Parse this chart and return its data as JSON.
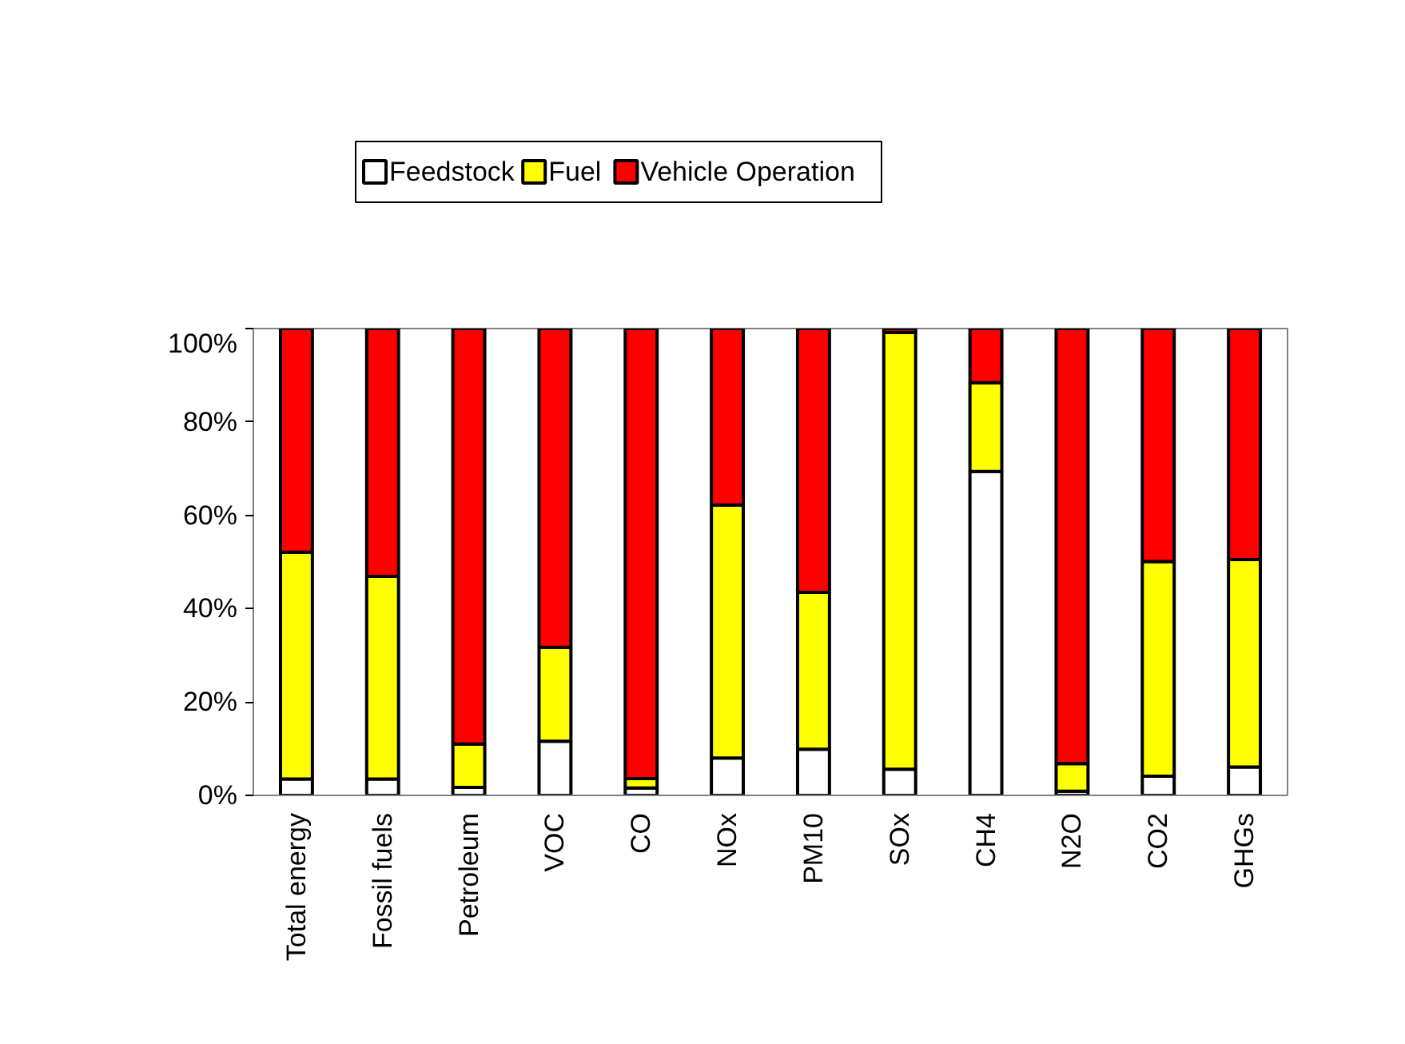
{
  "chart_data": {
    "type": "bar",
    "stacked": true,
    "categories": [
      "Total energy",
      "Fossil fuels",
      "Petroleum",
      "VOC",
      "CO",
      "NOx",
      "PM10",
      "SOx",
      "CH4",
      "N2O",
      "CO2",
      "GHGs"
    ],
    "series": [
      {
        "name": "Feedstock",
        "color": "#ffffff",
        "values": [
          3.5,
          3.5,
          1.7,
          11.6,
          1.6,
          8.0,
          9.9,
          5.6,
          69.4,
          0.9,
          4.1,
          6.1
        ]
      },
      {
        "name": "Fuel",
        "color": "#ffff00",
        "values": [
          48.6,
          43.4,
          9.3,
          20.1,
          2.0,
          54.2,
          33.6,
          93.6,
          19.0,
          5.9,
          46.0,
          44.4
        ]
      },
      {
        "name": "Vehicle Operation",
        "color": "#ff0000",
        "values": [
          47.9,
          53.1,
          89.0,
          68.3,
          96.4,
          37.8,
          56.5,
          0.8,
          11.6,
          93.2,
          49.9,
          49.5
        ]
      }
    ],
    "ylim": [
      0,
      100
    ],
    "yticks": [
      {
        "value": 0,
        "label": "0%"
      },
      {
        "value": 20,
        "label": "20%"
      },
      {
        "value": 40,
        "label": "40%"
      },
      {
        "value": 60,
        "label": "60%"
      },
      {
        "value": 80,
        "label": "80%"
      },
      {
        "value": 100,
        "label": "100%"
      }
    ],
    "grid": false,
    "legend": "top"
  }
}
